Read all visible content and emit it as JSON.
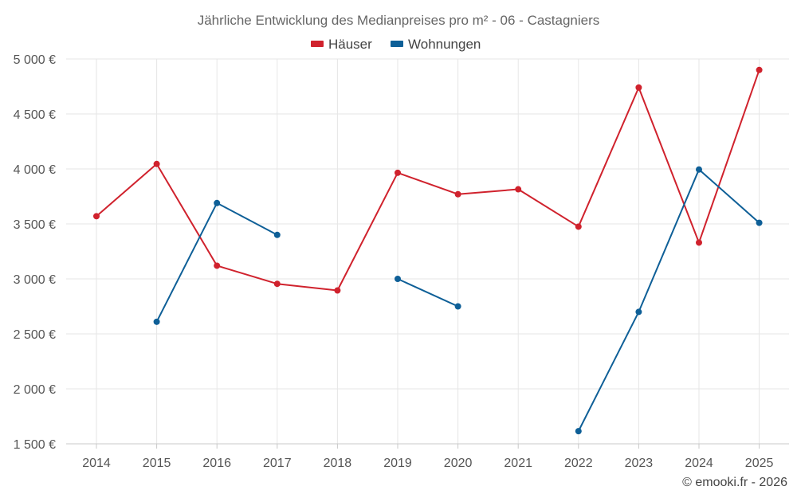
{
  "chart_data": {
    "type": "line",
    "title": "Jährliche Entwicklung des Medianpreises pro m² - 06 - Castagniers",
    "categories": [
      "2014",
      "2015",
      "2016",
      "2017",
      "2018",
      "2019",
      "2020",
      "2021",
      "2022",
      "2023",
      "2024",
      "2025"
    ],
    "series": [
      {
        "name": "Häuser",
        "color": "#d0222d",
        "values": [
          3570,
          4045,
          3120,
          2955,
          2895,
          3965,
          3770,
          3815,
          3475,
          4740,
          3330,
          4900
        ]
      },
      {
        "name": "Wohnungen",
        "color": "#0e5f97",
        "values": [
          null,
          2610,
          3690,
          3400,
          null,
          3000,
          2750,
          null,
          1615,
          2700,
          3995,
          3510
        ]
      }
    ],
    "ylim": [
      1500,
      5000
    ],
    "yticks": [
      "1 500 €",
      "2 000 €",
      "2 500 €",
      "3 000 €",
      "3 500 €",
      "4 000 €",
      "4 500 €",
      "5 000 €"
    ],
    "ytick_values": [
      1500,
      2000,
      2500,
      3000,
      3500,
      4000,
      4500,
      5000
    ],
    "legend_position": "top-center",
    "grid": true,
    "xlabel": "",
    "ylabel": ""
  },
  "credit": "© emooki.fr - 2026"
}
